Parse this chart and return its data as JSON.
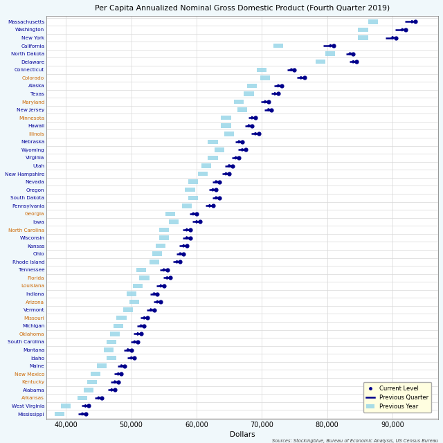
{
  "title": "Per Capita Annualized Nominal Gross Domestic Product (Fourth Quarter 2019)",
  "xlabel": "Dollars",
  "source": "Sources: Stockingblue, Bureau of Economic Analysis, US Census Bureau",
  "states": [
    "Massachusetts",
    "Washington",
    "New York",
    "California",
    "North Dakota",
    "Delaware",
    "Connecticut",
    "Colorado",
    "Alaska",
    "Texas",
    "Maryland",
    "New Jersey",
    "Minnesota",
    "Hawaii",
    "Illinois",
    "Nebraska",
    "Wyoming",
    "Virginia",
    "Utah",
    "New Hampshire",
    "Nevada",
    "Oregon",
    "South Dakota",
    "Pennsylvania",
    "Georgia",
    "Iowa",
    "North Carolina",
    "Wisconsin",
    "Kansas",
    "Ohio",
    "Rhode Island",
    "Tennessee",
    "Florida",
    "Louisiana",
    "Indiana",
    "Arizona",
    "Vermont",
    "Missouri",
    "Michigan",
    "Oklahoma",
    "South Carolina",
    "Montana",
    "Idaho",
    "Maine",
    "New Mexico",
    "Kentucky",
    "Alabama",
    "Arkansas",
    "West Virginia",
    "Mississippi"
  ],
  "current": [
    93500,
    92000,
    90500,
    81000,
    84000,
    84500,
    75000,
    76500,
    73000,
    72500,
    71000,
    71500,
    69000,
    68500,
    69500,
    67000,
    67500,
    66500,
    65500,
    65000,
    63500,
    63000,
    63500,
    62500,
    60000,
    60500,
    59000,
    59000,
    58500,
    58000,
    57500,
    55500,
    56000,
    55000,
    54000,
    54500,
    53500,
    52500,
    52000,
    51500,
    51000,
    50000,
    50500,
    49000,
    48500,
    48000,
    47500,
    45500,
    43500,
    43000
  ],
  "prev_quarter": [
    92500,
    91000,
    89500,
    80000,
    83500,
    84000,
    74500,
    76000,
    72500,
    72000,
    70500,
    71000,
    68500,
    68000,
    69000,
    66500,
    67000,
    66000,
    65000,
    64500,
    63000,
    62500,
    63000,
    62000,
    59500,
    60000,
    58500,
    58500,
    58000,
    57500,
    57000,
    55000,
    55500,
    54500,
    53500,
    54000,
    53000,
    52000,
    51500,
    51000,
    50500,
    49500,
    50000,
    48500,
    48000,
    47500,
    47000,
    45000,
    43000,
    42500
  ],
  "prev_year": [
    87000,
    85500,
    85500,
    72500,
    80500,
    79000,
    70000,
    70500,
    68500,
    68000,
    66500,
    67000,
    64500,
    64500,
    65000,
    62500,
    63500,
    62500,
    61500,
    61000,
    59500,
    59000,
    59500,
    58500,
    56000,
    56500,
    55000,
    55000,
    54500,
    54000,
    53500,
    51500,
    52000,
    51000,
    50000,
    50500,
    49500,
    48500,
    48000,
    47500,
    47000,
    46500,
    47000,
    45500,
    44500,
    44000,
    43500,
    42500,
    40000,
    39000
  ],
  "label_colors": {
    "Massachusetts": "#000099",
    "Washington": "#000099",
    "New York": "#000099",
    "California": "#000099",
    "North Dakota": "#000099",
    "Delaware": "#000099",
    "Connecticut": "#000099",
    "Colorado": "#cc6600",
    "Alaska": "#000099",
    "Texas": "#000099",
    "Maryland": "#cc6600",
    "New Jersey": "#000099",
    "Minnesota": "#cc6600",
    "Hawaii": "#000099",
    "Illinois": "#cc6600",
    "Nebraska": "#000099",
    "Wyoming": "#000099",
    "Virginia": "#000099",
    "Utah": "#000099",
    "New Hampshire": "#000099",
    "Nevada": "#000099",
    "Oregon": "#000099",
    "South Dakota": "#000099",
    "Pennsylvania": "#000099",
    "Georgia": "#cc6600",
    "Iowa": "#000099",
    "North Carolina": "#cc6600",
    "Wisconsin": "#000099",
    "Kansas": "#000099",
    "Ohio": "#000099",
    "Rhode Island": "#000099",
    "Tennessee": "#000099",
    "Florida": "#cc6600",
    "Louisiana": "#cc6600",
    "Indiana": "#000099",
    "Arizona": "#cc6600",
    "Vermont": "#000099",
    "Missouri": "#cc6600",
    "Michigan": "#000099",
    "Oklahoma": "#cc6600",
    "South Carolina": "#000099",
    "Montana": "#000099",
    "Idaho": "#000099",
    "Maine": "#000099",
    "New Mexico": "#cc6600",
    "Kentucky": "#cc6600",
    "Alabama": "#000099",
    "Arkansas": "#cc6600",
    "West Virginia": "#000099",
    "Mississippi": "#000099"
  },
  "xlim": [
    37000,
    97000
  ],
  "xticks": [
    40000,
    50000,
    60000,
    70000,
    80000,
    90000
  ],
  "xtick_labels": [
    "40,000",
    "50,000",
    "60,000",
    "70,000",
    "80,000",
    "90,000"
  ],
  "bg_color": "#f0f8fb",
  "grid_color": "#d8d8d8",
  "plot_bg": "#ffffff",
  "arrow_color": "#00008B",
  "prev_quarter_color": "#00008B",
  "prev_year_color": "#99D6E8"
}
